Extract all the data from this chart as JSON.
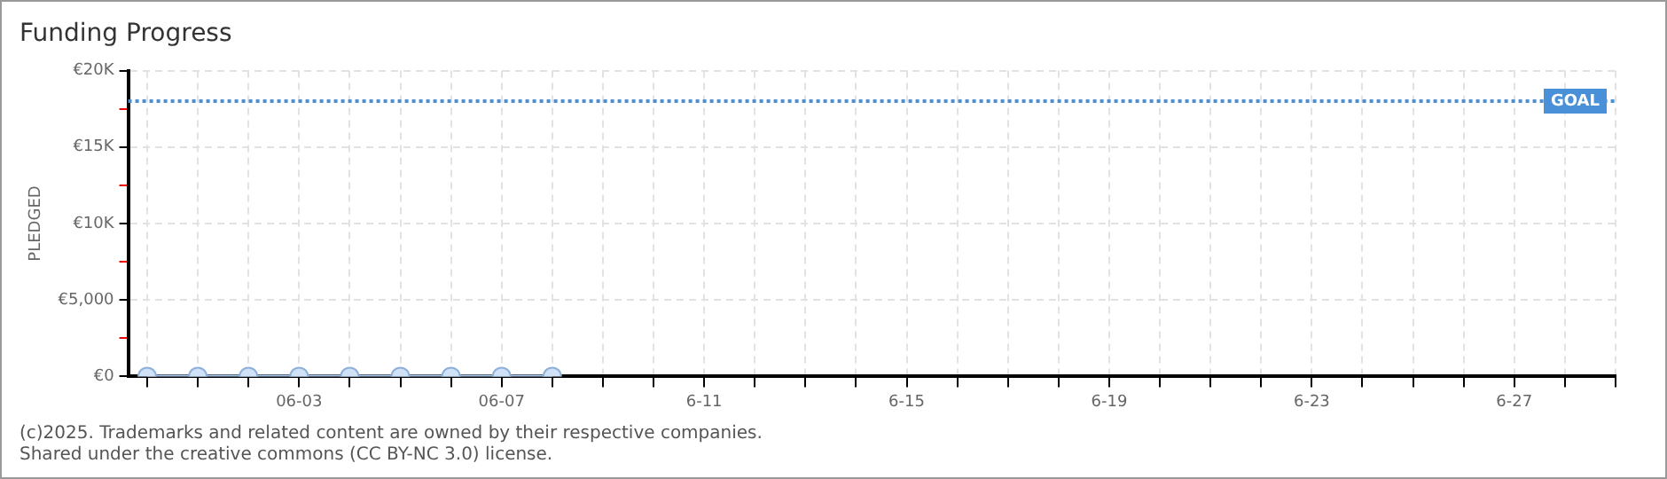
{
  "chart_data": {
    "type": "line",
    "title": "Funding Progress",
    "ylabel": "PLEDGED",
    "x": [
      "2025-05-31",
      "2025-06-01",
      "2025-06-02",
      "2025-06-03",
      "2025-06-04",
      "2025-06-05",
      "2025-06-06",
      "2025-06-07",
      "2025-06-08"
    ],
    "series": [
      {
        "color": "#a9c9ee",
        "values": [
          0,
          0,
          0,
          0,
          0,
          0,
          0,
          0,
          0
        ]
      }
    ],
    "marker": "circle",
    "legend": false,
    "grid": true,
    "xlim": [
      "2025-05-30T15:00",
      "2025-06-29"
    ],
    "xticks": [
      {
        "value": "2025-05-31",
        "label": null
      },
      {
        "value": "2025-06-01",
        "label": null
      },
      {
        "value": "2025-06-02",
        "label": null
      },
      {
        "value": "2025-06-03",
        "label": "06-03"
      },
      {
        "value": "2025-06-04",
        "label": null
      },
      {
        "value": "2025-06-05",
        "label": null
      },
      {
        "value": "2025-06-06",
        "label": null
      },
      {
        "value": "2025-06-07",
        "label": "06-07"
      },
      {
        "value": "2025-06-08",
        "label": null
      },
      {
        "value": "2025-06-09",
        "label": null
      },
      {
        "value": "2025-06-10",
        "label": null
      },
      {
        "value": "2025-06-11",
        "label": "6-11"
      },
      {
        "value": "2025-06-12",
        "label": null
      },
      {
        "value": "2025-06-13",
        "label": null
      },
      {
        "value": "2025-06-14",
        "label": null
      },
      {
        "value": "2025-06-15",
        "label": "6-15"
      },
      {
        "value": "2025-06-16",
        "label": null
      },
      {
        "value": "2025-06-17",
        "label": null
      },
      {
        "value": "2025-06-18",
        "label": null
      },
      {
        "value": "2025-06-19",
        "label": "6-19"
      },
      {
        "value": "2025-06-20",
        "label": null
      },
      {
        "value": "2025-06-21",
        "label": null
      },
      {
        "value": "2025-06-22",
        "label": null
      },
      {
        "value": "2025-06-23",
        "label": "6-23"
      },
      {
        "value": "2025-06-24",
        "label": null
      },
      {
        "value": "2025-06-25",
        "label": null
      },
      {
        "value": "2025-06-26",
        "label": null
      },
      {
        "value": "2025-06-27",
        "label": "6-27"
      },
      {
        "value": "2025-06-28",
        "label": null
      },
      {
        "value": "2025-06-29",
        "label": null
      }
    ],
    "ylim": [
      0,
      20000
    ],
    "yticks": [
      {
        "value": 0,
        "label": "€0"
      },
      {
        "value": 2500,
        "label": null
      },
      {
        "value": 5000,
        "label": "€5,000"
      },
      {
        "value": 7500,
        "label": null
      },
      {
        "value": 10000,
        "label": "€10K"
      },
      {
        "value": 12500,
        "label": null
      },
      {
        "value": 15000,
        "label": "€15K"
      },
      {
        "value": 17500,
        "label": null
      },
      {
        "value": 20000,
        "label": "€20K"
      }
    ],
    "ref_lines": [
      {
        "axis": "y",
        "value": 18000,
        "label": "GOAL",
        "color": "#4a90d9",
        "line_style": "dotted"
      }
    ],
    "annotations": [
      "(c)2025. Trademarks and related content are owned by their respective companies.",
      "Shared under the creative commons (CC BY-NC 3.0) license."
    ]
  }
}
